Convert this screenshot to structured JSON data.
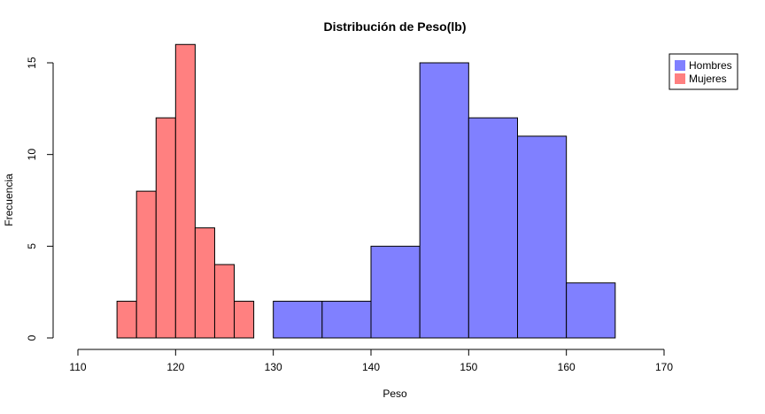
{
  "chart_data": {
    "type": "bar",
    "title": "Distribución de Peso(lb)",
    "xlabel": "Peso",
    "ylabel": "Frecuencia",
    "xlim": [
      110,
      170
    ],
    "ylim": [
      0,
      15
    ],
    "x_ticks": [
      110,
      120,
      130,
      140,
      150,
      160,
      170
    ],
    "y_ticks": [
      0,
      5,
      10,
      15
    ],
    "grid": false,
    "legend_position": "top-right",
    "series": [
      {
        "name": "Hombres",
        "color": "#8080ff",
        "bins": [
          {
            "x0": 130,
            "x1": 135,
            "count": 2
          },
          {
            "x0": 135,
            "x1": 140,
            "count": 2
          },
          {
            "x0": 140,
            "x1": 145,
            "count": 5
          },
          {
            "x0": 145,
            "x1": 150,
            "count": 15
          },
          {
            "x0": 150,
            "x1": 155,
            "count": 12
          },
          {
            "x0": 155,
            "x1": 160,
            "count": 11
          },
          {
            "x0": 160,
            "x1": 165,
            "count": 3
          }
        ]
      },
      {
        "name": "Mujeres",
        "color": "#ff8080",
        "bins": [
          {
            "x0": 114,
            "x1": 116,
            "count": 2
          },
          {
            "x0": 116,
            "x1": 118,
            "count": 8
          },
          {
            "x0": 118,
            "x1": 120,
            "count": 12
          },
          {
            "x0": 120,
            "x1": 122,
            "count": 16
          },
          {
            "x0": 122,
            "x1": 124,
            "count": 6
          },
          {
            "x0": 124,
            "x1": 126,
            "count": 4
          },
          {
            "x0": 126,
            "x1": 128,
            "count": 2
          }
        ]
      }
    ]
  }
}
